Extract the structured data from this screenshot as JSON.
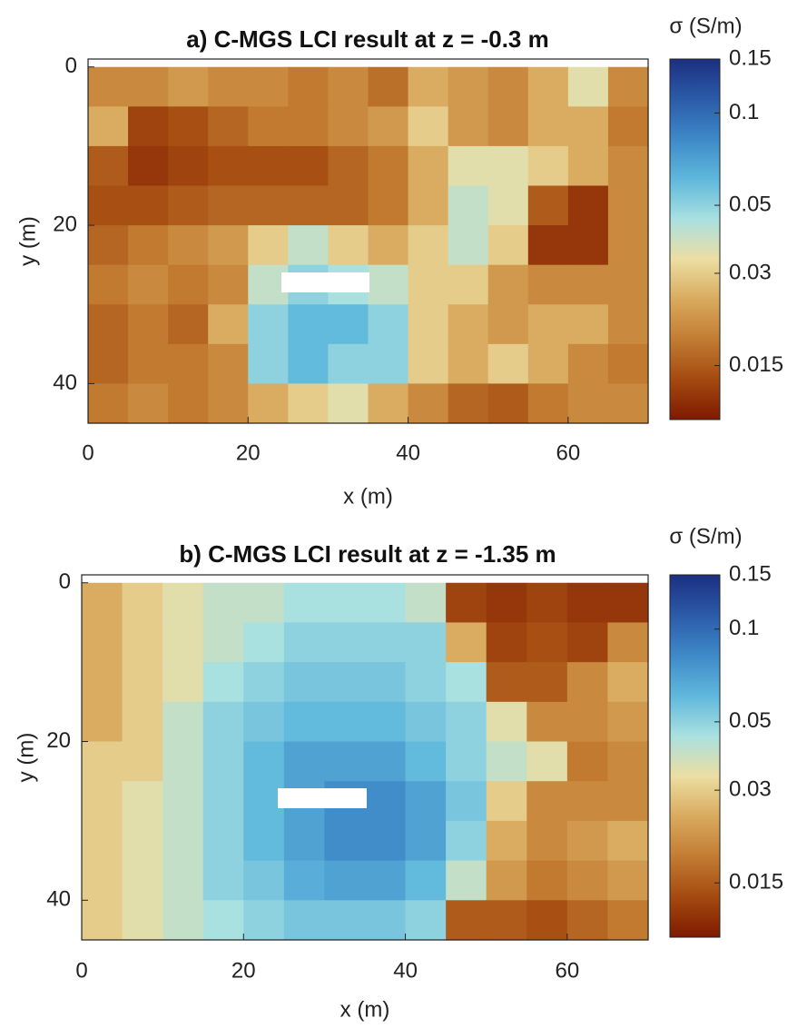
{
  "chart_data": [
    {
      "type": "heatmap",
      "title": "a) C-MGS LCI result at z = -0.3 m",
      "xlabel": "x (m)",
      "ylabel": "y (m)",
      "x": [
        2.5,
        7.5,
        12.5,
        17.5,
        22.5,
        27.5,
        32.5,
        37.5,
        42.5,
        47.5,
        52.5,
        57.5,
        62.5,
        67.5
      ],
      "y": [
        2.5,
        7.5,
        12.5,
        17.5,
        22.5,
        27.5,
        32.5,
        37.5,
        42.5
      ],
      "z": [
        [
          0.02,
          0.02,
          0.022,
          0.02,
          0.02,
          0.018,
          0.02,
          0.017,
          0.025,
          0.022,
          0.02,
          0.025,
          0.035,
          0.02
        ],
        [
          0.025,
          0.013,
          0.014,
          0.016,
          0.018,
          0.018,
          0.02,
          0.022,
          0.03,
          0.022,
          0.02,
          0.025,
          0.025,
          0.018
        ],
        [
          0.015,
          0.012,
          0.013,
          0.014,
          0.014,
          0.014,
          0.016,
          0.018,
          0.025,
          0.035,
          0.035,
          0.03,
          0.025,
          0.02
        ],
        [
          0.014,
          0.014,
          0.015,
          0.016,
          0.016,
          0.016,
          0.016,
          0.018,
          0.025,
          0.04,
          0.035,
          0.015,
          0.012,
          0.02
        ],
        [
          0.016,
          0.018,
          0.02,
          0.022,
          0.03,
          0.04,
          0.03,
          0.025,
          0.03,
          0.04,
          0.03,
          0.012,
          0.012,
          0.02
        ],
        [
          0.018,
          0.02,
          0.018,
          0.02,
          0.04,
          0.05,
          0.045,
          0.04,
          0.03,
          0.03,
          0.022,
          0.02,
          0.02,
          0.02
        ],
        [
          0.016,
          0.018,
          0.016,
          0.025,
          0.05,
          0.06,
          0.06,
          0.05,
          0.03,
          0.025,
          0.022,
          0.025,
          0.025,
          0.02
        ],
        [
          0.016,
          0.018,
          0.018,
          0.02,
          0.05,
          0.06,
          0.05,
          0.05,
          0.03,
          0.025,
          0.03,
          0.025,
          0.02,
          0.018
        ],
        [
          0.018,
          0.02,
          0.018,
          0.02,
          0.025,
          0.03,
          0.035,
          0.025,
          0.02,
          0.016,
          0.015,
          0.018,
          0.02,
          0.02
        ]
      ],
      "xlim": [
        0,
        70
      ],
      "ylim": [
        -1,
        45
      ],
      "xticks": [
        0,
        20,
        40,
        60
      ],
      "yticks": [
        0,
        20,
        40
      ],
      "colorbar": {
        "label": "σ (S/m)",
        "lim": [
          0.01,
          0.15
        ],
        "ticks": [
          0.015,
          0.03,
          0.05,
          0.1,
          0.15
        ],
        "log": true
      },
      "colormap": [
        "#7e1a00",
        "#a44a10",
        "#c27c32",
        "#d9aa5e",
        "#ecdea2",
        "#a9e0e0",
        "#5fb8dc",
        "#3e89c8",
        "#2b5ba8",
        "#1b2f80"
      ]
    },
    {
      "type": "heatmap",
      "title": "b) C-MGS LCI result at z = -1.35 m",
      "xlabel": "x (m)",
      "ylabel": "y (m)",
      "x": [
        2.5,
        7.5,
        12.5,
        17.5,
        22.5,
        27.5,
        32.5,
        37.5,
        42.5,
        47.5,
        52.5,
        57.5,
        62.5,
        67.5
      ],
      "y": [
        2.5,
        7.5,
        12.5,
        17.5,
        22.5,
        27.5,
        32.5,
        37.5,
        42.5
      ],
      "z": [
        [
          0.025,
          0.03,
          0.035,
          0.04,
          0.04,
          0.045,
          0.045,
          0.045,
          0.04,
          0.013,
          0.012,
          0.013,
          0.012,
          0.012
        ],
        [
          0.025,
          0.03,
          0.035,
          0.04,
          0.045,
          0.05,
          0.05,
          0.05,
          0.05,
          0.025,
          0.013,
          0.014,
          0.013,
          0.02
        ],
        [
          0.025,
          0.03,
          0.035,
          0.045,
          0.05,
          0.055,
          0.055,
          0.055,
          0.05,
          0.045,
          0.015,
          0.015,
          0.02,
          0.025
        ],
        [
          0.025,
          0.03,
          0.04,
          0.05,
          0.055,
          0.06,
          0.06,
          0.06,
          0.055,
          0.05,
          0.035,
          0.02,
          0.02,
          0.022
        ],
        [
          0.03,
          0.03,
          0.04,
          0.05,
          0.06,
          0.07,
          0.07,
          0.07,
          0.06,
          0.05,
          0.04,
          0.035,
          0.018,
          0.02
        ],
        [
          0.03,
          0.035,
          0.04,
          0.05,
          0.06,
          0.07,
          0.08,
          0.08,
          0.07,
          0.055,
          0.03,
          0.02,
          0.02,
          0.02
        ],
        [
          0.03,
          0.035,
          0.04,
          0.05,
          0.06,
          0.07,
          0.08,
          0.08,
          0.07,
          0.05,
          0.025,
          0.02,
          0.022,
          0.025
        ],
        [
          0.03,
          0.035,
          0.04,
          0.05,
          0.055,
          0.065,
          0.07,
          0.07,
          0.06,
          0.04,
          0.022,
          0.018,
          0.02,
          0.022
        ],
        [
          0.03,
          0.035,
          0.04,
          0.045,
          0.05,
          0.055,
          0.055,
          0.055,
          0.05,
          0.015,
          0.015,
          0.014,
          0.016,
          0.018
        ]
      ],
      "xlim": [
        0,
        70
      ],
      "ylim": [
        -1,
        45
      ],
      "xticks": [
        0,
        20,
        40,
        60
      ],
      "yticks": [
        0,
        20,
        40
      ],
      "colorbar": {
        "label": "σ (S/m)",
        "lim": [
          0.01,
          0.15
        ],
        "ticks": [
          0.015,
          0.03,
          0.05,
          0.1,
          0.15
        ],
        "log": true
      },
      "colormap": [
        "#7e1a00",
        "#a44a10",
        "#c27c32",
        "#d9aa5e",
        "#ecdea2",
        "#a9e0e0",
        "#5fb8dc",
        "#3e89c8",
        "#2b5ba8",
        "#1b2f80"
      ]
    }
  ]
}
